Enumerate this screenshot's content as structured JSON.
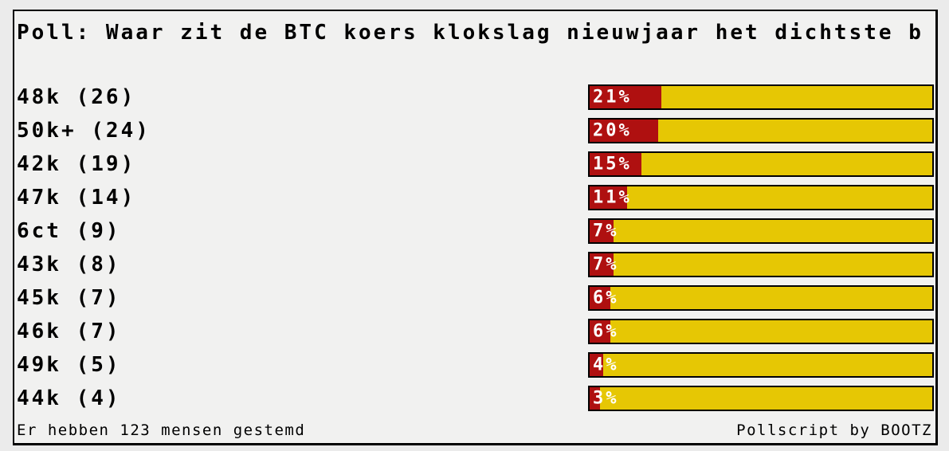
{
  "poll": {
    "title": "Poll: Waar zit de BTC koers klokslag nieuwjaar het dichtste b",
    "options": [
      {
        "label": "48k (26)",
        "votes": 26,
        "percent": 21,
        "percent_label": "21%"
      },
      {
        "label": "50k+ (24)",
        "votes": 24,
        "percent": 20,
        "percent_label": "20%"
      },
      {
        "label": "42k (19)",
        "votes": 19,
        "percent": 15,
        "percent_label": "15%"
      },
      {
        "label": "47k (14)",
        "votes": 14,
        "percent": 11,
        "percent_label": "11%"
      },
      {
        "label": "6ct (9)",
        "votes": 9,
        "percent": 7,
        "percent_label": "7%"
      },
      {
        "label": "43k (8)",
        "votes": 8,
        "percent": 7,
        "percent_label": "7%"
      },
      {
        "label": "45k (7)",
        "votes": 7,
        "percent": 6,
        "percent_label": "6%"
      },
      {
        "label": "46k (7)",
        "votes": 7,
        "percent": 6,
        "percent_label": "6%"
      },
      {
        "label": "49k (5)",
        "votes": 5,
        "percent": 4,
        "percent_label": "4%"
      },
      {
        "label": "44k (4)",
        "votes": 4,
        "percent": 3,
        "percent_label": "3%"
      }
    ],
    "footer_left": "Er hebben 123 mensen gestemd",
    "footer_right": "Pollscript by BOOTZ"
  },
  "chart_data": {
    "type": "bar",
    "orientation": "horizontal",
    "title": "Poll: Waar zit de BTC koers klokslag nieuwjaar het dichtste b",
    "categories": [
      "48k",
      "50k+",
      "42k",
      "47k",
      "6ct",
      "43k",
      "45k",
      "46k",
      "49k",
      "44k"
    ],
    "series": [
      {
        "name": "votes",
        "values": [
          26,
          24,
          19,
          14,
          9,
          8,
          7,
          7,
          5,
          4
        ]
      },
      {
        "name": "percent",
        "values": [
          21,
          20,
          15,
          11,
          7,
          7,
          6,
          6,
          4,
          3
        ]
      }
    ],
    "total_votes": 123,
    "xlabel": "",
    "ylabel": "",
    "xlim": [
      0,
      100
    ],
    "grid": false,
    "legend": false
  },
  "colors": {
    "page_bg": "#ebebeb",
    "box_bg": "#f1f1f0",
    "border": "#000000",
    "bar_bg": "#e6c704",
    "bar_fill": "#af1010",
    "bar_text": "#ffffff"
  }
}
